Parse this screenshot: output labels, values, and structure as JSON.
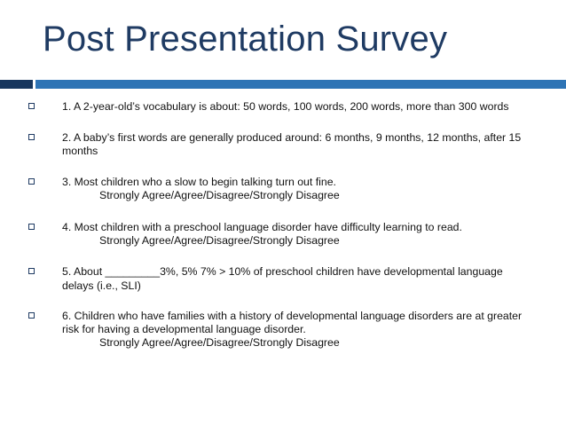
{
  "slide": {
    "title": "Post Presentation Survey",
    "colors": {
      "title": "#1f3b63",
      "band_dark": "#17365d",
      "band_light": "#2e74b5"
    },
    "bullet_icon": "hollow-square-bullet",
    "items": [
      {
        "text": "1. A 2-year-old’s vocabulary is about:  50 words, 100 words, 200 words, more than 300 words"
      },
      {
        "text": "2. A baby’s first words are generally produced around: 6 months, 9 months, 12 months, after 15 months"
      },
      {
        "text": "3.  Most children who a slow to begin talking turn out fine.",
        "scale": "Strongly Agree/Agree/Disagree/Strongly Disagree"
      },
      {
        "text": "4. Most children with a preschool language disorder have difficulty learning to read.",
        "scale": "Strongly Agree/Agree/Disagree/Strongly Disagree"
      },
      {
        "text": "5.  About _________3%, 5% 7% > 10% of preschool children have developmental language delays (i.e., SLI)"
      },
      {
        "text": "6. Children who have families with a history of developmental language disorders are at greater risk for having a developmental language disorder.",
        "scale": "Strongly Agree/Agree/Disagree/Strongly Disagree"
      }
    ]
  }
}
